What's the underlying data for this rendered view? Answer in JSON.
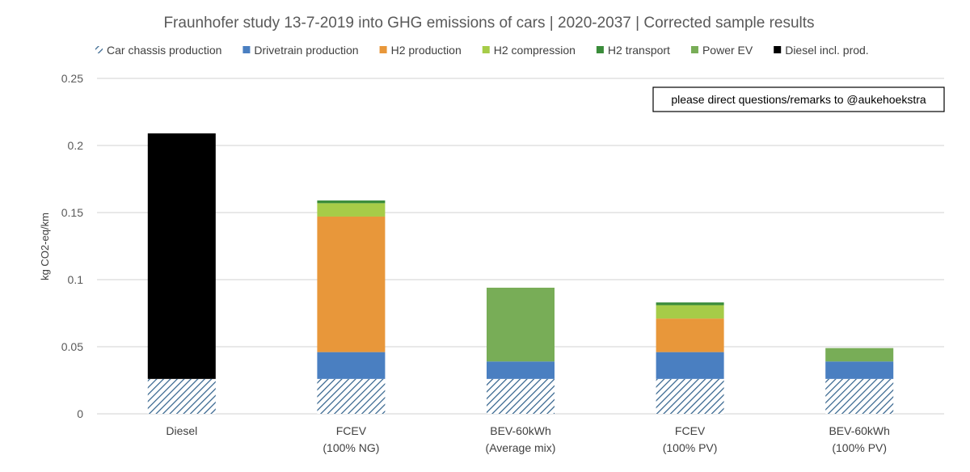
{
  "chart_data": {
    "type": "bar",
    "stacked": true,
    "title": "Fraunhofer study 13-7-2019 into GHG emissions of cars | 2020-2037 | Corrected sample results",
    "ylabel": "kg CO2-eq/km",
    "xlabel": "",
    "ylim": [
      0,
      0.25
    ],
    "yticks": [
      0,
      0.05,
      0.1,
      0.15,
      0.2,
      0.25
    ],
    "ytick_labels": [
      "0",
      "0.05",
      "0.1",
      "0.15",
      "0.2",
      "0.25"
    ],
    "grid": true,
    "legend_position": "top",
    "categories": [
      [
        "Diesel"
      ],
      [
        "FCEV",
        "(100% NG)"
      ],
      [
        "BEV-60kWh",
        "(Average mix)"
      ],
      [
        "FCEV",
        "(100% PV)"
      ],
      [
        "BEV-60kWh",
        "(100% PV)"
      ]
    ],
    "series": [
      {
        "name": "Car chassis production",
        "color": "#2e5f8a",
        "pattern": "hatch",
        "values": [
          0.026,
          0.026,
          0.026,
          0.026,
          0.026
        ]
      },
      {
        "name": "Drivetrain production",
        "color": "#4a7fc1",
        "values": [
          0,
          0.02,
          0.013,
          0.02,
          0.013
        ]
      },
      {
        "name": "H2 production",
        "color": "#e8973a",
        "values": [
          0,
          0.101,
          0,
          0.025,
          0
        ]
      },
      {
        "name": "H2 compression",
        "color": "#a6cc48",
        "values": [
          0,
          0.01,
          0,
          0.01,
          0
        ]
      },
      {
        "name": "H2 transport",
        "color": "#3a8c3a",
        "values": [
          0,
          0.002,
          0,
          0.002,
          0
        ]
      },
      {
        "name": "Power EV",
        "color": "#78ad57",
        "values": [
          0,
          0,
          0.055,
          0,
          0.01
        ]
      },
      {
        "name": "Diesel incl. prod.",
        "color": "#000000",
        "values": [
          0.183,
          0,
          0,
          0,
          0
        ]
      }
    ],
    "annotation": "please direct questions/remarks to @aukehoekstra"
  }
}
